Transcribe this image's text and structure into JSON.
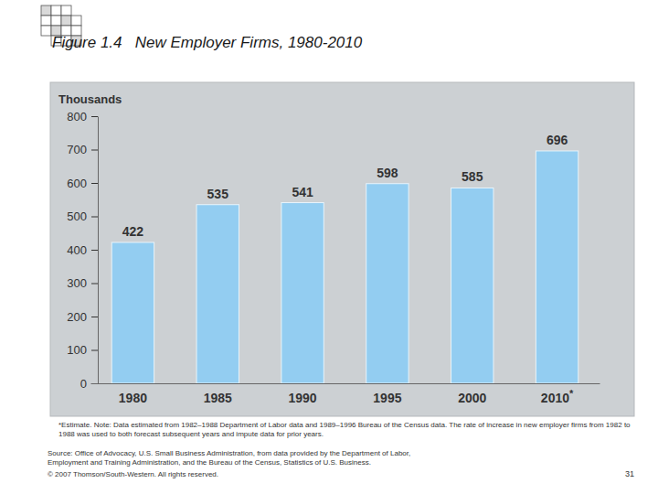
{
  "chart_data": {
    "type": "bar",
    "title": "Figure 1.4   New Employer Firms, 1980-2010",
    "y_label": "Thousands",
    "categories": [
      "1980",
      "1985",
      "1990",
      "1995",
      "2000",
      "2010*"
    ],
    "values": [
      422,
      535,
      541,
      598,
      585,
      696
    ],
    "color": "#93cdf1",
    "ylim": [
      0,
      800
    ],
    "yticks": [
      0,
      100,
      200,
      300,
      400,
      500,
      600,
      700,
      800
    ],
    "grid": false,
    "data_labels": true
  },
  "slide": {
    "footnote": "*Estimate. Note: Data estimated from 1982–1988 Department of Labor data and 1989–1996 Bureau of the Census data. The rate of increase in new employer firms from 1982 to 1988 was used to both forecast subsequent years and impute data for prior years.",
    "source": "Source: Office of Advocacy, U.S. Small Business Administration, from data provided by the Department of Labor, Employment and Training Administration, and the Bureau of the Census, Statistics of U.S. Business.",
    "copyright": "© 2007 Thomson/South-Western. All rights reserved.",
    "page_number": "31"
  }
}
